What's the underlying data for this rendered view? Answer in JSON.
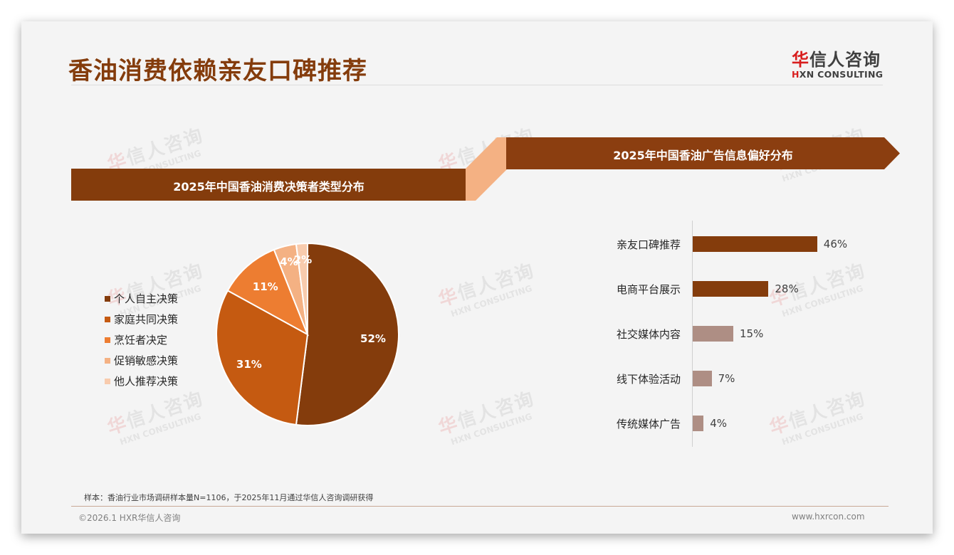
{
  "header": {
    "title": "香油消费依赖亲友口碑推荐",
    "logo": {
      "cn_accent": "华",
      "cn_rest": "信人咨询",
      "en_accent": "H",
      "en_rest": "XN CONSULTING"
    }
  },
  "watermark": {
    "cn_accent": "华",
    "cn_rest": "信人咨询",
    "en": "HXN CONSULTING"
  },
  "colors": {
    "brand_brown": "#843C0C",
    "pie": [
      "#843C0C",
      "#C55A11",
      "#ED7D31",
      "#F4B183",
      "#F8CBAD"
    ],
    "bar_strong": "#843C0C",
    "bar_muted": "#AE8E84",
    "connector": "#F4B183"
  },
  "left_section": {
    "banner": "2025年中国香油消费决策者类型分布"
  },
  "right_section": {
    "banner": "2025年中国香油广告信息偏好分布"
  },
  "chart_data": [
    {
      "type": "pie",
      "title": "2025年中国香油消费决策者类型分布",
      "categories": [
        "个人自主决策",
        "家庭共同决策",
        "烹饪者决定",
        "促销敏感决策",
        "他人推荐决策"
      ],
      "values": [
        52,
        31,
        11,
        4,
        2
      ],
      "labels": [
        "52%",
        "31%",
        "11%",
        "4%",
        "2%"
      ],
      "legend_position": "left"
    },
    {
      "type": "bar",
      "orientation": "horizontal",
      "title": "2025年中国香油广告信息偏好分布",
      "categories": [
        "亲友口碑推荐",
        "电商平台展示",
        "社交媒体内容",
        "线下体验活动",
        "传统媒体广告"
      ],
      "values": [
        46,
        28,
        15,
        7,
        4
      ],
      "labels": [
        "46%",
        "28%",
        "15%",
        "7%",
        "4%"
      ],
      "xlabel": "",
      "ylabel": "",
      "grid": false
    }
  ],
  "footer": {
    "note": "样本：香油行业市场调研样本量N=1106，于2025年11月通过华信人咨询调研获得",
    "copyright": "©2026.1 HXR华信人咨询",
    "website": "www.hxrcon.com"
  }
}
